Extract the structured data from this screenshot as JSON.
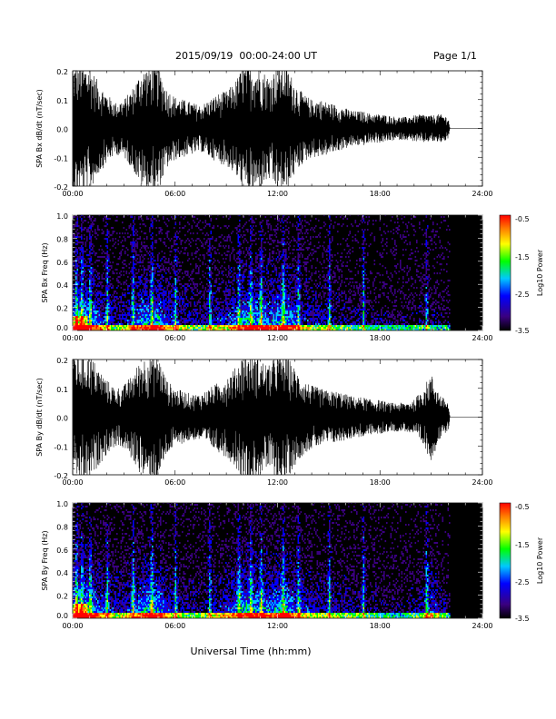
{
  "header": {
    "date_range": "2015/09/19  00:00-24:00 UT",
    "page": "Page 1/1"
  },
  "x_axis_label": "Universal Time (hh:mm)",
  "colors": {
    "trace": "#000000",
    "background": "#ffffff",
    "colormap": [
      "#000000",
      "#3a0080",
      "#0000ff",
      "#00c8ff",
      "#00ff00",
      "#ffff00",
      "#ff8000",
      "#ff0000"
    ]
  },
  "chart_data": [
    {
      "type": "line",
      "ylabel": "SPA Bx dB/dt (nT/sec)",
      "xlim": [
        0,
        24
      ],
      "ylim": [
        -0.2,
        0.2
      ],
      "x_ticks": [
        "00:00",
        "06:00",
        "12:00",
        "18:00",
        "24:00"
      ],
      "y_ticks": [
        "-0.2",
        "-0.1",
        "0.0",
        "0.1",
        "0.2"
      ],
      "data_end_hour": 22.1,
      "series": [
        {
          "x": [
            0,
            0.5,
            1,
            1.5,
            2,
            2.5,
            3,
            3.5,
            4,
            4.5,
            5,
            5.5,
            6,
            6.5,
            7,
            7.5,
            8,
            8.5,
            9,
            9.5,
            10,
            10.5,
            11,
            11.5,
            12,
            12.5,
            13,
            13.5,
            14,
            14.5,
            15,
            15.5,
            16,
            16.5,
            17,
            17.5,
            18,
            18.5,
            19,
            19.5,
            20,
            20.5,
            21,
            21.5,
            22,
            22.1,
            24
          ],
          "amplitude": [
            0.22,
            0.22,
            0.22,
            0.16,
            0.12,
            0.09,
            0.1,
            0.14,
            0.2,
            0.22,
            0.22,
            0.14,
            0.11,
            0.1,
            0.09,
            0.08,
            0.1,
            0.12,
            0.13,
            0.16,
            0.22,
            0.22,
            0.21,
            0.18,
            0.22,
            0.22,
            0.16,
            0.12,
            0.1,
            0.1,
            0.09,
            0.08,
            0.07,
            0.06,
            0.06,
            0.05,
            0.05,
            0.045,
            0.04,
            0.04,
            0.045,
            0.05,
            0.045,
            0.05,
            0.04,
            0.0,
            0.0
          ]
        }
      ]
    },
    {
      "type": "heatmap",
      "ylabel": "SPA Bx Freq (Hz)",
      "xlim": [
        0,
        24
      ],
      "ylim": [
        0.0,
        1.0
      ],
      "x_ticks": [
        "00:00",
        "06:00",
        "12:00",
        "18:00",
        "24:00"
      ],
      "y_ticks": [
        "0.0",
        "0.2",
        "0.4",
        "0.6",
        "0.8",
        "1.0"
      ],
      "data_end_hour": 22.1,
      "colorbar": {
        "label": "Log10 Power",
        "range": [
          -3.5,
          -0.5
        ],
        "ticks": [
          "-0.5",
          "-1.5",
          "-2.5",
          "-3.5"
        ]
      },
      "activity_hours": [
        0.2,
        0.5,
        1.0,
        2.0,
        3.5,
        4.6,
        6.0,
        8.0,
        9.7,
        10.4,
        11.0,
        12.3,
        13.2,
        15.0,
        17.0,
        20.7
      ]
    },
    {
      "type": "line",
      "ylabel": "SPA By dB/dt (nT/sec)",
      "xlim": [
        0,
        24
      ],
      "ylim": [
        -0.2,
        0.2
      ],
      "x_ticks": [
        "00:00",
        "06:00",
        "12:00",
        "18:00",
        "24:00"
      ],
      "y_ticks": [
        "-0.2",
        "-0.1",
        "0.0",
        "0.1",
        "0.2"
      ],
      "data_end_hour": 22.1,
      "series": [
        {
          "x": [
            0,
            0.5,
            1,
            1.5,
            2,
            2.5,
            3,
            3.5,
            4,
            4.5,
            5,
            5.5,
            6,
            6.5,
            7,
            7.5,
            8,
            8.5,
            9,
            9.5,
            10,
            10.5,
            11,
            11.5,
            12,
            12.5,
            13,
            13.5,
            14,
            14.5,
            15,
            15.5,
            16,
            16.5,
            17,
            17.5,
            18,
            18.5,
            19,
            19.5,
            20,
            20.5,
            21,
            21.5,
            22,
            22.1,
            24
          ],
          "amplitude": [
            0.22,
            0.22,
            0.22,
            0.17,
            0.13,
            0.1,
            0.11,
            0.15,
            0.2,
            0.22,
            0.22,
            0.13,
            0.1,
            0.09,
            0.08,
            0.08,
            0.1,
            0.12,
            0.14,
            0.17,
            0.22,
            0.22,
            0.2,
            0.18,
            0.22,
            0.22,
            0.17,
            0.13,
            0.11,
            0.1,
            0.09,
            0.09,
            0.08,
            0.07,
            0.07,
            0.06,
            0.06,
            0.05,
            0.05,
            0.05,
            0.06,
            0.1,
            0.15,
            0.08,
            0.05,
            0.0,
            0.0
          ]
        }
      ]
    },
    {
      "type": "heatmap",
      "ylabel": "SPA By Freq (Hz)",
      "xlim": [
        0,
        24
      ],
      "ylim": [
        0.0,
        1.0
      ],
      "x_ticks": [
        "00:00",
        "06:00",
        "12:00",
        "18:00",
        "24:00"
      ],
      "y_ticks": [
        "0.0",
        "0.2",
        "0.4",
        "0.6",
        "0.8",
        "1.0"
      ],
      "data_end_hour": 22.1,
      "colorbar": {
        "label": "Log10 Power",
        "range": [
          -3.5,
          -0.5
        ],
        "ticks": [
          "-0.5",
          "-1.5",
          "-2.5",
          "-3.5"
        ]
      },
      "activity_hours": [
        0.2,
        0.5,
        1.0,
        2.0,
        3.5,
        4.6,
        6.0,
        8.0,
        9.7,
        10.4,
        11.0,
        12.3,
        13.2,
        15.0,
        17.0,
        20.7
      ]
    }
  ]
}
